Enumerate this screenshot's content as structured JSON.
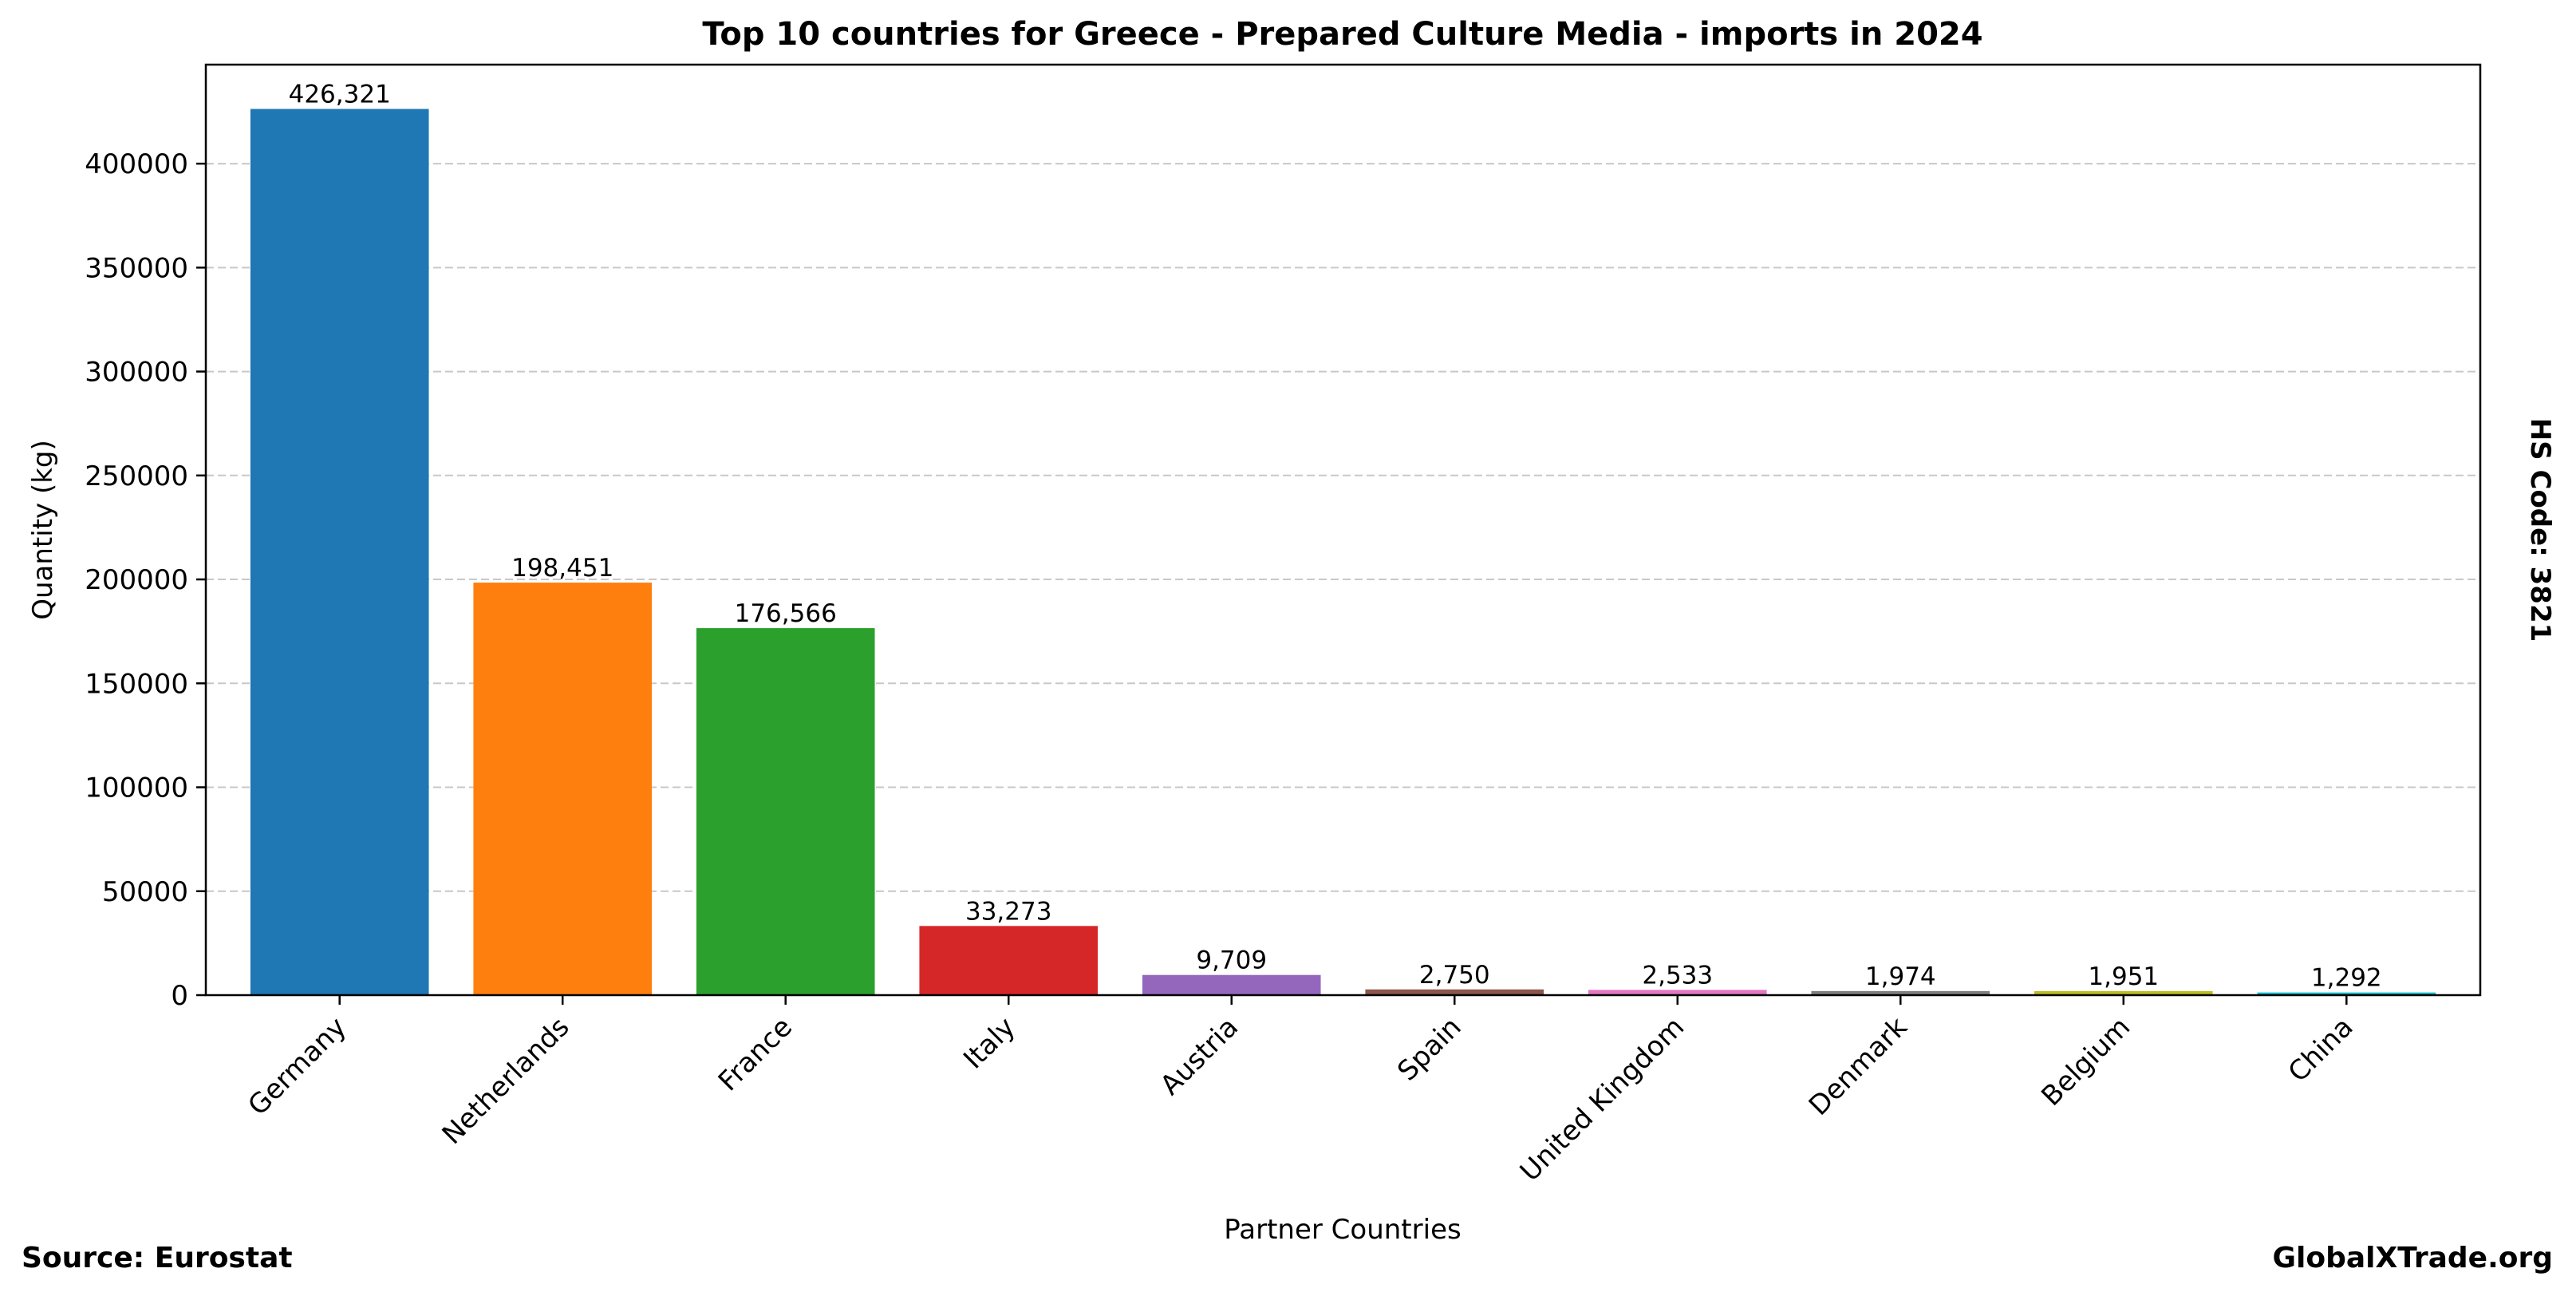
{
  "chart_data": {
    "type": "bar",
    "title": "Top 10 countries for Greece - Prepared Culture Media - imports in 2024",
    "xlabel": "Partner Countries",
    "ylabel": "Quantity (kg)",
    "categories": [
      "Germany",
      "Netherlands",
      "France",
      "Italy",
      "Austria",
      "Spain",
      "United Kingdom",
      "Denmark",
      "Belgium",
      "China"
    ],
    "values": [
      426321,
      198451,
      176566,
      33273,
      9709,
      2750,
      2533,
      1974,
      1951,
      1292
    ],
    "value_labels": [
      "426,321",
      "198,451",
      "176,566",
      "33,273",
      "9,709",
      "2,750",
      "2,533",
      "1,974",
      "1,951",
      "1,292"
    ],
    "colors": [
      "#1f77b4",
      "#ff7f0e",
      "#2ca02c",
      "#d62728",
      "#9467bd",
      "#8c564b",
      "#e377c2",
      "#7f7f7f",
      "#bcbd22",
      "#17becf"
    ],
    "yticks": [
      0,
      50000,
      100000,
      150000,
      200000,
      250000,
      300000,
      350000,
      400000
    ],
    "ytick_labels": [
      "0",
      "50000",
      "100000",
      "150000",
      "200000",
      "250000",
      "300000",
      "350000",
      "400000"
    ],
    "ylim": [
      0,
      447637
    ],
    "grid": "horizontal dashed",
    "legend": "none"
  },
  "annotations": {
    "source": "Source: Eurostat",
    "brand": "GlobalXTrade.org",
    "hs_code": "HS Code: 3821"
  }
}
